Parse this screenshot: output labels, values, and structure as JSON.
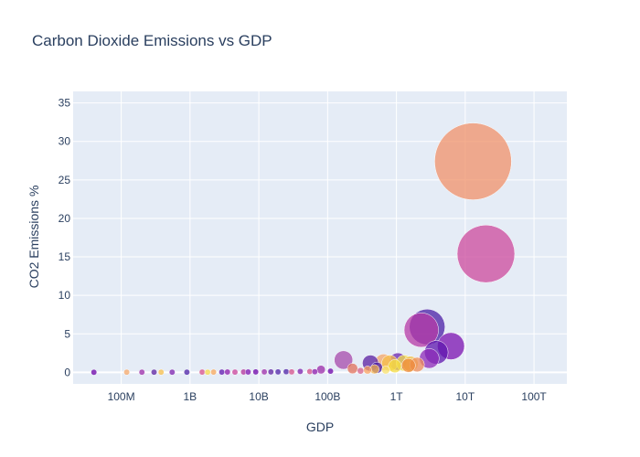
{
  "chart_data": {
    "type": "scatter",
    "title": "Carbon Dioxide Emissions vs GDP",
    "xlabel": "GDP",
    "ylabel": "CO2 Emissions %",
    "x_scale": "log",
    "x_ticks": [
      {
        "value": 100000000,
        "label": "100M"
      },
      {
        "value": 1000000000,
        "label": "1B"
      },
      {
        "value": 10000000000,
        "label": "10B"
      },
      {
        "value": 100000000000,
        "label": "100B"
      },
      {
        "value": 1000000000000,
        "label": "1T"
      },
      {
        "value": 10000000000000,
        "label": "10T"
      },
      {
        "value": 100000000000000,
        "label": "100T"
      }
    ],
    "y_ticks": [
      0,
      5,
      10,
      15,
      20,
      25,
      30,
      35
    ],
    "xlim": [
      20000000,
      300000000000000
    ],
    "ylim": [
      -1.5,
      36.5
    ],
    "grid": true,
    "legend": "none",
    "colors": {
      "background": "#ffffff",
      "plot_background": "#e5ecf6",
      "grid": "#ffffff",
      "text": "#2a3f5f"
    },
    "points": [
      {
        "x": 13000000000000,
        "y": 27.4,
        "size": 27.4,
        "color": "#f0916a"
      },
      {
        "x": 20000000000000,
        "y": 15.4,
        "size": 15.4,
        "color": "#cc4a9c"
      },
      {
        "x": 2800000000000,
        "y": 5.9,
        "size": 5.9,
        "color": "#4a1fa6"
      },
      {
        "x": 2300000000000,
        "y": 5.5,
        "size": 5.5,
        "color": "#b53aa6"
      },
      {
        "x": 6200000000000,
        "y": 3.4,
        "size": 3.4,
        "color": "#7b12b0"
      },
      {
        "x": 3800000000000,
        "y": 2.6,
        "size": 2.6,
        "color": "#5d16ad"
      },
      {
        "x": 3000000000000,
        "y": 1.8,
        "size": 1.8,
        "color": "#8d2bb8"
      },
      {
        "x": 170000000000,
        "y": 1.6,
        "size": 1.6,
        "color": "#a64aab"
      },
      {
        "x": 650000000000,
        "y": 1.3,
        "size": 1.3,
        "color": "#f4a768"
      },
      {
        "x": 1050000000000,
        "y": 1.4,
        "size": 1.4,
        "color": "#6a24ad"
      },
      {
        "x": 420000000000,
        "y": 1.2,
        "size": 1.2,
        "color": "#5a1fa0"
      },
      {
        "x": 800000000000,
        "y": 1.2,
        "size": 1.2,
        "color": "#f6bd4a"
      },
      {
        "x": 1600000000000,
        "y": 1.1,
        "size": 1.1,
        "color": "#f0c04a"
      },
      {
        "x": 2000000000000,
        "y": 1.0,
        "size": 1.0,
        "color": "#ef8e5a"
      },
      {
        "x": 1300000000000,
        "y": 1.2,
        "size": 1.2,
        "color": "#f4e04a"
      },
      {
        "x": 520000000000,
        "y": 0.6,
        "size": 0.6,
        "color": "#4a1fa6"
      },
      {
        "x": 950000000000,
        "y": 0.8,
        "size": 0.8,
        "color": "#f6dd40"
      },
      {
        "x": 1500000000000,
        "y": 0.9,
        "size": 0.9,
        "color": "#ee8b3e"
      },
      {
        "x": 230000000000,
        "y": 0.5,
        "size": 0.5,
        "color": "#e0705a"
      },
      {
        "x": 480000000000,
        "y": 0.4,
        "size": 0.4,
        "color": "#f1b34c"
      },
      {
        "x": 700000000000,
        "y": 0.3,
        "size": 0.3,
        "color": "#f8e06c"
      },
      {
        "x": 380000000000,
        "y": 0.3,
        "size": 0.3,
        "color": "#f9a05c"
      },
      {
        "x": 80000000000,
        "y": 0.35,
        "size": 0.35,
        "color": "#9a2aa8"
      },
      {
        "x": 300000000000,
        "y": 0.2,
        "size": 0.2,
        "color": "#d5608a"
      },
      {
        "x": 110000000000,
        "y": 0.15,
        "size": 0.15,
        "color": "#6a00a8"
      },
      {
        "x": 40000000000,
        "y": 0.12,
        "size": 0.12,
        "color": "#7a1fad"
      },
      {
        "x": 55000000000,
        "y": 0.1,
        "size": 0.1,
        "color": "#d24e8a"
      },
      {
        "x": 25000000000,
        "y": 0.08,
        "size": 0.08,
        "color": "#4a1fa6"
      },
      {
        "x": 15000000000,
        "y": 0.06,
        "size": 0.06,
        "color": "#5a1fa0"
      },
      {
        "x": 9000000000,
        "y": 0.05,
        "size": 0.05,
        "color": "#6a00a8"
      },
      {
        "x": 6000000000,
        "y": 0.04,
        "size": 0.04,
        "color": "#b0309a"
      },
      {
        "x": 3500000000,
        "y": 0.04,
        "size": 0.04,
        "color": "#8a18ab"
      },
      {
        "x": 2200000000,
        "y": 0.03,
        "size": 0.03,
        "color": "#f6a55a"
      },
      {
        "x": 1500000000,
        "y": 0.03,
        "size": 0.03,
        "color": "#d64e8a"
      },
      {
        "x": 900000000,
        "y": 0.02,
        "size": 0.02,
        "color": "#4a1fa6"
      },
      {
        "x": 550000000,
        "y": 0.02,
        "size": 0.02,
        "color": "#7a1fad"
      },
      {
        "x": 380000000,
        "y": 0.02,
        "size": 0.02,
        "color": "#f6bd4a"
      },
      {
        "x": 300000000,
        "y": 0.02,
        "size": 0.02,
        "color": "#5a1fa0"
      },
      {
        "x": 200000000,
        "y": 0.02,
        "size": 0.02,
        "color": "#9a2aa8"
      },
      {
        "x": 120000000,
        "y": 0.02,
        "size": 0.02,
        "color": "#f4a768"
      },
      {
        "x": 40000000,
        "y": 0.01,
        "size": 0.01,
        "color": "#6a00a8"
      },
      {
        "x": 1800000000,
        "y": 0.02,
        "size": 0.02,
        "color": "#f4d84a"
      },
      {
        "x": 2900000000,
        "y": 0.03,
        "size": 0.03,
        "color": "#5d16ad"
      },
      {
        "x": 4500000000,
        "y": 0.03,
        "size": 0.03,
        "color": "#c8409a"
      },
      {
        "x": 7000000000,
        "y": 0.04,
        "size": 0.04,
        "color": "#7b12b0"
      },
      {
        "x": 12000000000,
        "y": 0.05,
        "size": 0.05,
        "color": "#9a2aa8"
      },
      {
        "x": 19000000000,
        "y": 0.05,
        "size": 0.05,
        "color": "#4a1fa6"
      },
      {
        "x": 30000000000,
        "y": 0.06,
        "size": 0.06,
        "color": "#d24e8a"
      },
      {
        "x": 65000000000,
        "y": 0.08,
        "size": 0.08,
        "color": "#8a18ab"
      }
    ]
  }
}
